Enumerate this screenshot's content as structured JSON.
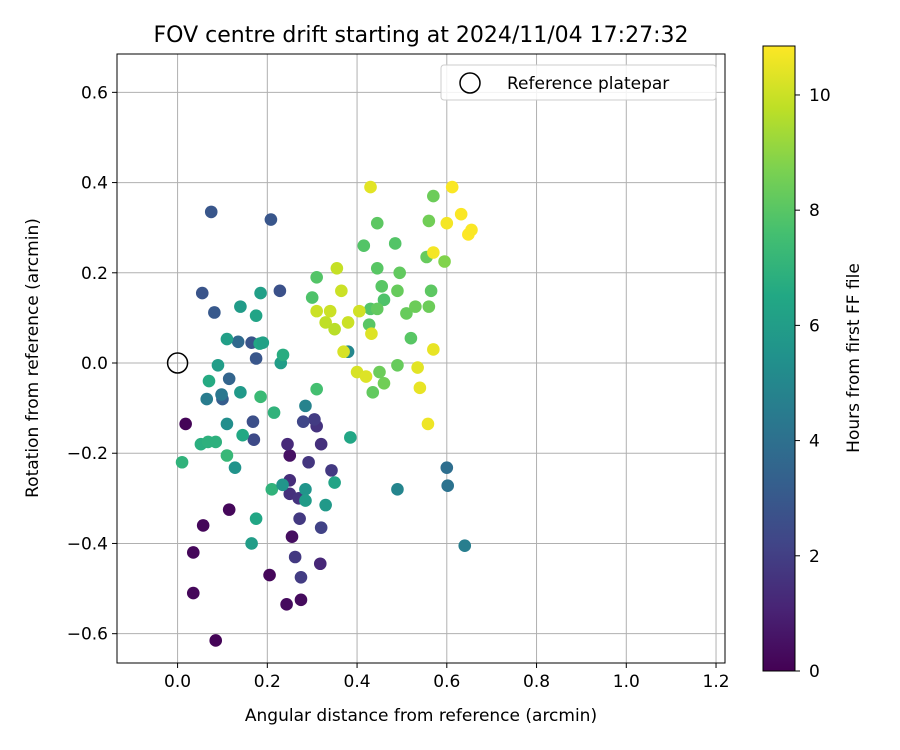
{
  "chart_data": {
    "type": "scatter",
    "title": "FOV centre drift starting at 2024/11/04 17:27:32",
    "xlabel": "Angular distance from reference (arcmin)",
    "ylabel": "Rotation from reference (arcmin)",
    "xlim": [
      -0.135,
      1.22
    ],
    "ylim": [
      -0.665,
      0.685
    ],
    "xticks": [
      0.0,
      0.2,
      0.4,
      0.6,
      0.8,
      1.0,
      1.2
    ],
    "xtick_labels": [
      "0.0",
      "0.2",
      "0.4",
      "0.6",
      "0.8",
      "1.0",
      "1.2"
    ],
    "yticks": [
      -0.6,
      -0.4,
      -0.2,
      0.0,
      0.2,
      0.4,
      0.6
    ],
    "ytick_labels": [
      "−0.6",
      "−0.4",
      "−0.2",
      "0.0",
      "0.2",
      "0.4",
      "0.6"
    ],
    "grid": true,
    "legend": {
      "placement": "upper-right",
      "label": "Reference platepar"
    },
    "reference_point": {
      "x": 0.0,
      "y": 0.0
    },
    "colorbar": {
      "label": "Hours from first FF file",
      "colormap": "viridis",
      "range": [
        0,
        10.85
      ],
      "ticks": [
        0,
        2,
        4,
        6,
        8,
        10
      ],
      "tick_labels": [
        "0",
        "2",
        "4",
        "6",
        "8",
        "10"
      ]
    },
    "point_fields": [
      "x",
      "y",
      "hours"
    ],
    "points": [
      [
        0.018,
        -0.135,
        0.1
      ],
      [
        0.035,
        -0.42,
        0.2
      ],
      [
        0.035,
        -0.51,
        0.2
      ],
      [
        0.057,
        -0.36,
        0.2
      ],
      [
        0.085,
        -0.615,
        0.1
      ],
      [
        0.115,
        -0.325,
        0.2
      ],
      [
        0.205,
        -0.47,
        0.2
      ],
      [
        0.243,
        -0.535,
        0.3
      ],
      [
        0.275,
        -0.525,
        0.3
      ],
      [
        0.255,
        -0.385,
        0.4
      ],
      [
        0.25,
        -0.205,
        0.5
      ],
      [
        0.245,
        -0.18,
        1.3
      ],
      [
        0.25,
        -0.26,
        1.4
      ],
      [
        0.25,
        -0.29,
        1.5
      ],
      [
        0.27,
        -0.3,
        1.6
      ],
      [
        0.318,
        -0.445,
        1.2
      ],
      [
        0.262,
        -0.43,
        1.8
      ],
      [
        0.272,
        -0.345,
        1.8
      ],
      [
        0.275,
        -0.475,
        1.9
      ],
      [
        0.292,
        -0.22,
        1.7
      ],
      [
        0.31,
        -0.14,
        1.6
      ],
      [
        0.32,
        -0.18,
        1.5
      ],
      [
        0.32,
        -0.365,
        2.1
      ],
      [
        0.343,
        -0.238,
        1.8
      ],
      [
        0.305,
        -0.125,
        1.9
      ],
      [
        0.28,
        -0.13,
        2.3
      ],
      [
        0.165,
        0.045,
        2.8
      ],
      [
        0.175,
        0.01,
        2.9
      ],
      [
        0.168,
        -0.13,
        2.6
      ],
      [
        0.17,
        -0.17,
        2.4
      ],
      [
        0.075,
        0.335,
        2.9
      ],
      [
        0.208,
        0.318,
        2.9
      ],
      [
        0.055,
        0.155,
        2.8
      ],
      [
        0.082,
        0.112,
        3.0
      ],
      [
        0.228,
        0.16,
        2.7
      ],
      [
        0.115,
        -0.035,
        3.5
      ],
      [
        0.1,
        -0.08,
        3.2
      ],
      [
        0.135,
        0.047,
        3.7
      ],
      [
        0.065,
        -0.08,
        4.5
      ],
      [
        0.098,
        -0.07,
        4.3
      ],
      [
        0.285,
        -0.095,
        4.8
      ],
      [
        0.49,
        -0.28,
        4.9
      ],
      [
        0.6,
        -0.232,
        3.9
      ],
      [
        0.602,
        -0.272,
        4.1
      ],
      [
        0.64,
        -0.405,
        4.6
      ],
      [
        0.11,
        -0.135,
        5.3
      ],
      [
        0.128,
        -0.232,
        5.5
      ],
      [
        0.11,
        0.053,
        6.1
      ],
      [
        0.09,
        -0.005,
        6.0
      ],
      [
        0.14,
        0.125,
        5.9
      ],
      [
        0.14,
        -0.065,
        5.8
      ],
      [
        0.185,
        0.155,
        6.1
      ],
      [
        0.23,
        0.0,
        6.0
      ],
      [
        0.235,
        0.018,
        6.7
      ],
      [
        0.183,
        0.043,
        6.4
      ],
      [
        0.19,
        0.045,
        6.2
      ],
      [
        0.175,
        0.105,
        6.3
      ],
      [
        0.145,
        -0.16,
        6.5
      ],
      [
        0.085,
        -0.175,
        6.9
      ],
      [
        0.07,
        -0.04,
        6.6
      ],
      [
        0.052,
        -0.18,
        6.8
      ],
      [
        0.068,
        -0.175,
        6.9
      ],
      [
        0.01,
        -0.22,
        7.0
      ],
      [
        0.11,
        -0.205,
        7.2
      ],
      [
        0.165,
        -0.4,
        6.0
      ],
      [
        0.175,
        -0.345,
        6.4
      ],
      [
        0.215,
        -0.11,
        7.0
      ],
      [
        0.185,
        -0.075,
        7.3
      ],
      [
        0.21,
        -0.28,
        7.0
      ],
      [
        0.234,
        -0.27,
        5.6
      ],
      [
        0.285,
        -0.28,
        5.6
      ],
      [
        0.285,
        -0.305,
        5.9
      ],
      [
        0.33,
        -0.315,
        5.8
      ],
      [
        0.35,
        -0.265,
        6.3
      ],
      [
        0.38,
        0.025,
        5.0
      ],
      [
        0.385,
        -0.165,
        6.4
      ],
      [
        0.31,
        -0.058,
        7.6
      ],
      [
        0.3,
        0.145,
        7.8
      ],
      [
        0.31,
        0.19,
        7.9
      ],
      [
        0.415,
        0.26,
        7.9
      ],
      [
        0.445,
        0.31,
        8.1
      ],
      [
        0.485,
        0.265,
        7.9
      ],
      [
        0.445,
        0.21,
        8.0
      ],
      [
        0.455,
        0.17,
        8.0
      ],
      [
        0.46,
        0.14,
        7.8
      ],
      [
        0.43,
        0.12,
        7.9
      ],
      [
        0.445,
        0.12,
        8.2
      ],
      [
        0.427,
        0.085,
        8.0
      ],
      [
        0.435,
        -0.065,
        8.2
      ],
      [
        0.46,
        -0.045,
        8.5
      ],
      [
        0.45,
        -0.02,
        8.4
      ],
      [
        0.49,
        -0.005,
        8.3
      ],
      [
        0.495,
        0.2,
        8.2
      ],
      [
        0.49,
        0.16,
        8.3
      ],
      [
        0.51,
        0.11,
        8.3
      ],
      [
        0.52,
        0.055,
        8.0
      ],
      [
        0.53,
        0.125,
        8.4
      ],
      [
        0.56,
        0.125,
        8.4
      ],
      [
        0.555,
        0.235,
        8.3
      ],
      [
        0.565,
        0.16,
        8.1
      ],
      [
        0.56,
        0.315,
        8.5
      ],
      [
        0.57,
        0.37,
        8.4
      ],
      [
        0.595,
        0.225,
        8.8
      ],
      [
        0.355,
        0.21,
        9.9
      ],
      [
        0.33,
        0.09,
        9.8
      ],
      [
        0.34,
        0.115,
        10.0
      ],
      [
        0.35,
        0.075,
        9.7
      ],
      [
        0.31,
        0.115,
        10.0
      ],
      [
        0.365,
        0.16,
        10.0
      ],
      [
        0.37,
        0.025,
        10.2
      ],
      [
        0.38,
        0.09,
        10.0
      ],
      [
        0.4,
        -0.02,
        10.2
      ],
      [
        0.405,
        0.115,
        10.1
      ],
      [
        0.42,
        -0.03,
        10.3
      ],
      [
        0.432,
        0.065,
        10.3
      ],
      [
        0.43,
        0.39,
        10.4
      ],
      [
        0.535,
        -0.01,
        10.4
      ],
      [
        0.54,
        -0.055,
        10.5
      ],
      [
        0.558,
        -0.135,
        10.6
      ],
      [
        0.57,
        0.03,
        10.5
      ],
      [
        0.57,
        0.245,
        10.7
      ],
      [
        0.6,
        0.31,
        10.7
      ],
      [
        0.612,
        0.39,
        10.8
      ],
      [
        0.632,
        0.33,
        10.8
      ],
      [
        0.648,
        0.285,
        10.9
      ],
      [
        0.655,
        0.295,
        10.8
      ]
    ]
  }
}
